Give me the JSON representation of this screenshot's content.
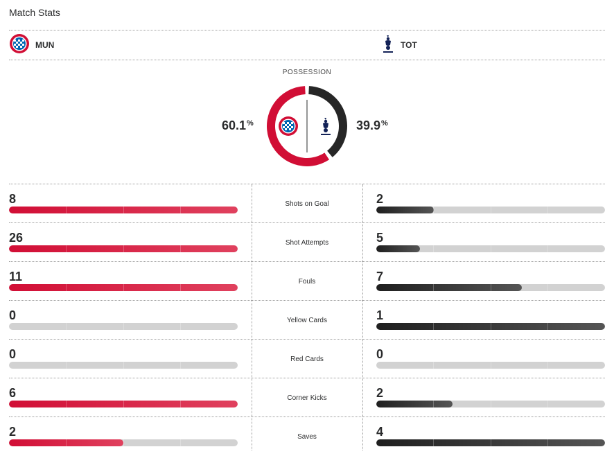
{
  "header": {
    "title": "Match Stats"
  },
  "home": {
    "abbr": "MUN",
    "color": "#d10e35",
    "logo_icon": "bayern-crest-icon"
  },
  "away": {
    "abbr": "TOT",
    "color": "#2b2c2d",
    "logo_icon": "tottenham-cockerel-icon"
  },
  "possession": {
    "label": "POSSESSION",
    "home_value": "60.1",
    "away_value": "39.9",
    "unit": "%",
    "home_fraction": 0.601
  },
  "stats": [
    {
      "label": "Shots on Goal",
      "home": "8",
      "away": "2",
      "home_fill": 1.0,
      "away_fill": 0.25
    },
    {
      "label": "Shot Attempts",
      "home": "26",
      "away": "5",
      "home_fill": 1.0,
      "away_fill": 0.192
    },
    {
      "label": "Fouls",
      "home": "11",
      "away": "7",
      "home_fill": 1.0,
      "away_fill": 0.636
    },
    {
      "label": "Yellow Cards",
      "home": "0",
      "away": "1",
      "home_fill": 0.0,
      "away_fill": 1.0
    },
    {
      "label": "Red Cards",
      "home": "0",
      "away": "0",
      "home_fill": 0.0,
      "away_fill": 0.0
    },
    {
      "label": "Corner Kicks",
      "home": "6",
      "away": "2",
      "home_fill": 1.0,
      "away_fill": 0.333
    },
    {
      "label": "Saves",
      "home": "2",
      "away": "4",
      "home_fill": 0.5,
      "away_fill": 1.0
    }
  ]
}
